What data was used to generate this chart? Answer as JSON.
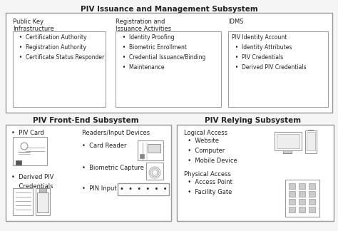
{
  "title_top": "PIV Issuance and Management Subsystem",
  "title_front": "PIV Front-End Subsystem",
  "title_relying": "PIV Relying Subsystem",
  "bg_color": "#f5f5f5",
  "text_color": "#222222",
  "edge_color": "#999999",
  "pki_title": "Public Key\nInfrastructure",
  "pki_items": "  •  Certification Authority\n  •  Registration Authority\n  •  Certificate Status Responder",
  "reg_title": "Registration and\nIssuance Activities",
  "reg_items": "  •  Identity Proofing\n  •  Biometric Enrollment\n  •  Credential Issuance/Binding\n  •  Maintenance",
  "idms_title": "IDMS",
  "idms_items": "PIV Identity Account\n  •  Identity Attributes\n  •  PIV Credentials\n  •  Derived PIV Credentials",
  "frontend_reader_title": "Readers/Input Devices",
  "relying_logical_title": "Logical Access",
  "relying_logical_items": "  •  Website\n  •  Computer\n  •  Mobile Device",
  "relying_physical_title": "Physical Access",
  "relying_physical_items": "  •  Access Point\n  •  Facility Gate",
  "pin_stars": "  ••••••"
}
